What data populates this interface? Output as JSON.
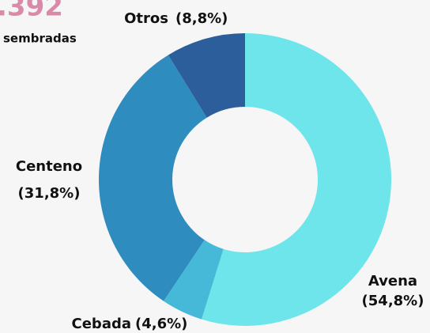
{
  "header": {
    "total": ".392",
    "caption": "sembradas"
  },
  "chart_data": {
    "type": "donut",
    "categories": [
      "Avena",
      "Cebada",
      "Centeno",
      "Otros"
    ],
    "values": [
      54.8,
      4.6,
      31.8,
      8.8
    ],
    "value_labels": [
      "(54,8%)",
      "(4,6%)",
      "(31,8%)",
      "(8,8%)"
    ],
    "colors": [
      "#6de5ea",
      "#45b9d7",
      "#2f8cbe",
      "#2c5e9b"
    ]
  }
}
